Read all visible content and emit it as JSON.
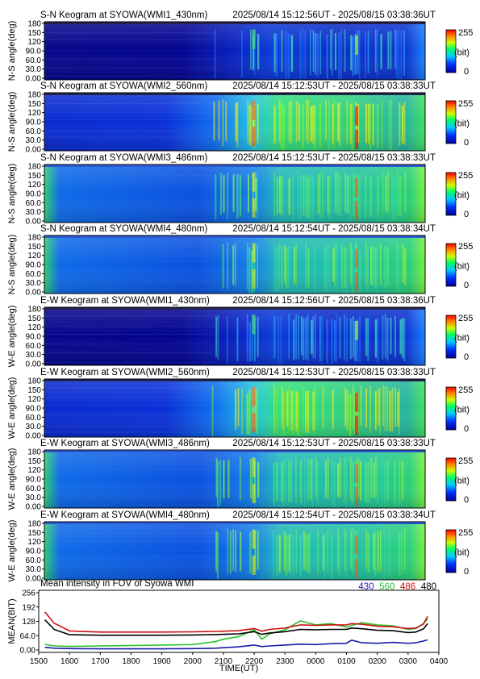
{
  "panels": [
    {
      "title": "S-N Keogram at SYOWA(WMI1_430nm)",
      "range": "2025/08/14 15:12:56UT - 2025/08/15 03:38:36UT",
      "ylabel": "N-S angle(deg)",
      "palette": "dark",
      "ticks": [
        "180",
        "150",
        "120",
        "90.0",
        "60.0",
        "30.0",
        "0.00"
      ]
    },
    {
      "title": "S-N Keogram at SYOWA(WMI2_560nm)",
      "range": "2025/08/14 15:12:53UT - 2025/08/15 03:38:33UT",
      "ylabel": "N-S angle(deg)",
      "palette": "bright",
      "ticks": [
        "180",
        "150",
        "120",
        "90.0",
        "60.0",
        "30.0",
        "0.00"
      ]
    },
    {
      "title": "S-N Keogram at SYOWA(WMI3_486nm)",
      "range": "2025/08/14 15:12:53UT - 2025/08/15 03:38:33UT",
      "ylabel": "N-S angle(deg)",
      "palette": "cyan",
      "ticks": [
        "180",
        "150",
        "120",
        "90.0",
        "60.0",
        "30.0",
        "0.00"
      ]
    },
    {
      "title": "S-N Keogram at SYOWA(WMI4_480nm)",
      "range": "2025/08/14 15:12:54UT - 2025/08/15 03:38:34UT",
      "ylabel": "N-S angle(deg)",
      "palette": "cyan",
      "ticks": [
        "180",
        "150",
        "120",
        "90.0",
        "60.0",
        "30.0",
        "0.00"
      ]
    },
    {
      "title": "E-W Keogram at SYOWA(WMI1_430nm)",
      "range": "2025/08/14 15:12:56UT - 2025/08/15 03:38:36UT",
      "ylabel": "W-E angle(deg)",
      "palette": "dark",
      "ticks": [
        "180",
        "150",
        "120",
        "90.0",
        "60.0",
        "30.0",
        "0.00"
      ]
    },
    {
      "title": "E-W Keogram at SYOWA(WMI2_560nm)",
      "range": "2025/08/14 15:12:53UT - 2025/08/15 03:38:33UT",
      "ylabel": "W-E angle(deg)",
      "palette": "bright",
      "ticks": [
        "180",
        "150",
        "120",
        "90.0",
        "60.0",
        "30.0",
        "0.00"
      ]
    },
    {
      "title": "E-W Keogram at SYOWA(WMI3_486nm)",
      "range": "2025/08/14 15:12:53UT - 2025/08/15 03:38:33UT",
      "ylabel": "W-E angle(deg)",
      "palette": "cyan",
      "ticks": [
        "180",
        "150",
        "120",
        "90.0",
        "60.0",
        "30.0",
        "0.00"
      ]
    },
    {
      "title": "E-W Keogram at SYOWA(WMI4_480nm)",
      "range": "2025/08/14 15:12:54UT - 2025/08/15 03:38:34UT",
      "ylabel": "W-E angle(deg)",
      "palette": "cyan",
      "ticks": [
        "180",
        "150",
        "120",
        "90.0",
        "60.0",
        "30.0",
        "0.00"
      ]
    }
  ],
  "colorbar": {
    "max": "255",
    "unit": "(bit)",
    "min": "0"
  },
  "mean": {
    "title": "Mean intensity in FOV of Syowa WMI",
    "ylabel": "MEAN(BIT)",
    "xlabel": "TIME(UT)"
  },
  "chart_data": {
    "type": "line",
    "title": "Mean intensity in FOV of Syowa WMI",
    "xlabel": "TIME(UT)",
    "ylabel": "MEAN(BIT)",
    "xlim": [
      "1500",
      "0400"
    ],
    "ylim": [
      0,
      256
    ],
    "x_ticks": [
      "1500",
      "1600",
      "1700",
      "1800",
      "1900",
      "2000",
      "2100",
      "2200",
      "2300",
      "0000",
      "0100",
      "0200",
      "0300",
      "0400"
    ],
    "y_ticks": [
      "256",
      "192",
      "128",
      "64.0",
      "0.00"
    ],
    "x": [
      "1512",
      "1530",
      "1600",
      "1700",
      "1800",
      "1900",
      "2000",
      "2045",
      "2100",
      "2130",
      "2200",
      "2215",
      "2230",
      "2300",
      "2330",
      "0000",
      "0030",
      "0100",
      "0110",
      "0130",
      "0200",
      "0230",
      "0300",
      "0315",
      "0330",
      "0338"
    ],
    "series": [
      {
        "name": "430",
        "color": "#1a1aaa",
        "values": [
          12,
          8,
          6,
          5,
          5,
          5,
          6,
          8,
          10,
          14,
          22,
          15,
          18,
          22,
          26,
          24,
          28,
          30,
          44,
          32,
          30,
          34,
          30,
          32,
          40,
          45
        ]
      },
      {
        "name": "560",
        "color": "#2bbf2b",
        "values": [
          25,
          18,
          16,
          18,
          20,
          22,
          24,
          38,
          48,
          60,
          90,
          48,
          72,
          90,
          130,
          112,
          118,
          102,
          110,
          122,
          112,
          108,
          92,
          96,
          118,
          140
        ]
      },
      {
        "name": "486",
        "color": "#cc1111",
        "values": [
          170,
          120,
          85,
          80,
          80,
          80,
          81,
          83,
          84,
          86,
          96,
          84,
          92,
          98,
          112,
          110,
          112,
          112,
          118,
          115,
          106,
          104,
          96,
          98,
          116,
          150
        ]
      },
      {
        "name": "480",
        "color": "#000000",
        "values": [
          135,
          92,
          68,
          66,
          66,
          66,
          67,
          69,
          70,
          72,
          82,
          70,
          76,
          82,
          92,
          90,
          92,
          92,
          98,
          95,
          88,
          86,
          78,
          80,
          94,
          118
        ]
      }
    ]
  }
}
